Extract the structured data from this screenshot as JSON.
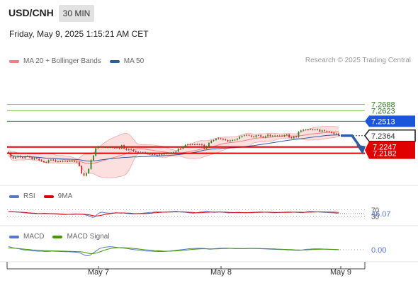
{
  "header": {
    "symbol": "USD/CNH",
    "interval": "30 MIN",
    "datetime": "Friday, May 9, 2025 1:15:21 AM CET"
  },
  "legend_main": [
    {
      "label": "MA 20 + Bollinger Bands",
      "color": "#f08080"
    },
    {
      "label": "MA 50",
      "color": "#2e5d9e"
    }
  ],
  "legend_rsi": [
    {
      "label": "RSI",
      "color": "#5577cc"
    },
    {
      "label": "9MA",
      "color": "#dd0000"
    }
  ],
  "legend_macd": [
    {
      "label": "MACD",
      "color": "#5577cc"
    },
    {
      "label": "MACD Signal",
      "color": "#449900"
    }
  ],
  "credit": "Research © 2025 Trading Central",
  "colors": {
    "up": "#2e7d1e",
    "down": "#c62828",
    "resistance": "#8bc34a",
    "pivot": "#1a56db",
    "support": "#e00000",
    "arrow": "#2e5d9e"
  },
  "chart_data": [
    {
      "type": "candlestick",
      "ylim": [
        7.185,
        7.305
      ],
      "x_ticks": [
        "May 7",
        "May 8",
        "May 9"
      ],
      "levels": [
        {
          "value": 7.2688,
          "label": "7.2688",
          "role": "resistance"
        },
        {
          "value": 7.2623,
          "label": "7.2623",
          "role": "resistance"
        },
        {
          "value": 7.2513,
          "label": "7.2513",
          "role": "pivot"
        },
        {
          "value": 7.2364,
          "label": "7.2364",
          "role": "last"
        },
        {
          "value": 7.2247,
          "label": "7.2247",
          "role": "support"
        },
        {
          "value": 7.2182,
          "label": "7.2182",
          "role": "support"
        }
      ],
      "close": [
        7.2185,
        7.2145,
        7.213,
        7.214,
        7.215,
        7.2142,
        7.2132,
        7.2148,
        7.215,
        7.214,
        7.212,
        7.2132,
        7.2125,
        7.211,
        7.21,
        7.209,
        7.2088,
        7.2108,
        7.2115,
        7.211,
        7.2096,
        7.21,
        7.2098,
        7.2102,
        7.21,
        7.2098,
        7.21,
        7.2103,
        7.2095,
        7.209,
        7.205,
        7.1975,
        7.195,
        7.1975,
        7.202,
        7.211,
        7.2158,
        7.2235,
        7.225,
        7.225,
        7.2245,
        7.2245,
        7.2242,
        7.2246,
        7.224,
        7.2238,
        7.224,
        7.223,
        7.2265,
        7.223,
        7.2215,
        7.2225,
        7.2218,
        7.2205,
        7.2196,
        7.2188,
        7.219,
        7.2192,
        7.2178,
        7.2182,
        7.217,
        7.2174,
        7.2165,
        7.2162,
        7.2168,
        7.217,
        7.2178,
        7.218,
        7.218,
        7.2188,
        7.2192,
        7.22,
        7.223,
        7.2228,
        7.2248,
        7.227,
        7.2275,
        7.2272,
        7.2275,
        7.2274,
        7.2273,
        7.2275,
        7.2268,
        7.2232,
        7.2255,
        7.229,
        7.231,
        7.2318,
        7.2332,
        7.2336,
        7.233,
        7.2325,
        7.2318,
        7.2305,
        7.2315,
        7.2318,
        7.2322,
        7.2332,
        7.2352,
        7.2362,
        7.2368,
        7.2372,
        7.2365,
        7.2355,
        7.235,
        7.2368,
        7.2368,
        7.2354,
        7.2345,
        7.2358,
        7.2374,
        7.236,
        7.2363,
        7.2364,
        7.2362,
        7.2364,
        7.2358,
        7.237,
        7.2375,
        7.2348,
        7.234,
        7.2355,
        7.235,
        7.2404,
        7.2418,
        7.2424,
        7.2427,
        7.2427,
        7.243,
        7.2426,
        7.2427,
        7.2428,
        7.2406,
        7.2418,
        7.2412,
        7.2407,
        7.24,
        7.2395,
        7.238,
        7.2385,
        7.2364
      ],
      "annotation": "arrow from 7.2364 down toward 7.2182"
    },
    {
      "type": "line",
      "name": "RSI",
      "ylim": [
        0,
        100
      ],
      "levels": [
        {
          "value": 70,
          "label": "70"
        },
        {
          "value": 30,
          "label": "30"
        }
      ],
      "last_label": "46.07",
      "series": [
        {
          "name": "RSI",
          "values": [
            60,
            58,
            57,
            56,
            55,
            54,
            52,
            50,
            49,
            48,
            47,
            46,
            45,
            46,
            47,
            48,
            47,
            46,
            45,
            44,
            43,
            42,
            41,
            40,
            40,
            41,
            42,
            43,
            44,
            43,
            42,
            41,
            38,
            34,
            28,
            22,
            24,
            40,
            50,
            55,
            52,
            50,
            48,
            49,
            50,
            51,
            50,
            49,
            50,
            48,
            46,
            45,
            44,
            45,
            46,
            47,
            48,
            50,
            52,
            53,
            54,
            56,
            58,
            57,
            56,
            55,
            56,
            57,
            58,
            59,
            60,
            58,
            56,
            55,
            54,
            52,
            50,
            48,
            50,
            52,
            55,
            58,
            60,
            62,
            58,
            55,
            53,
            55,
            57,
            56,
            54,
            52,
            50,
            51,
            52,
            53,
            54,
            53,
            52,
            51,
            52,
            53,
            54,
            55,
            56,
            57,
            56,
            55,
            54,
            53,
            52,
            51,
            52,
            53,
            54,
            55,
            56,
            57,
            56,
            55,
            54,
            53,
            52,
            51,
            55,
            58,
            60,
            59,
            58,
            57,
            56,
            55,
            54,
            53,
            52,
            51,
            50,
            48,
            46
          ]
        },
        {
          "name": "9MA",
          "values": [
            60,
            59,
            58,
            57,
            56,
            55,
            54,
            53,
            51,
            50,
            49,
            48,
            47,
            46,
            46,
            46,
            46,
            46,
            46,
            45,
            45,
            44,
            43,
            42,
            41,
            41,
            41,
            41,
            42,
            42,
            42,
            42,
            41,
            39,
            37,
            34,
            31,
            31,
            33,
            36,
            39,
            42,
            45,
            47,
            49,
            50,
            50,
            50,
            50,
            49,
            49,
            48,
            47,
            46,
            46,
            46,
            46,
            46,
            47,
            48,
            49,
            51,
            52,
            53,
            54,
            55,
            55,
            56,
            56,
            57,
            57,
            57,
            57,
            57,
            56,
            55,
            54,
            53,
            52,
            51,
            51,
            52,
            53,
            54,
            55,
            56,
            56,
            56,
            56,
            56,
            56,
            55,
            54,
            53,
            52,
            52,
            52,
            52,
            52,
            52,
            52,
            52,
            52,
            53,
            53,
            54,
            54,
            55,
            55,
            55,
            54,
            54,
            53,
            53,
            53,
            53,
            53,
            54,
            54,
            55,
            55,
            55,
            55,
            54,
            54,
            55,
            55,
            56,
            56,
            57,
            57,
            57,
            57,
            56,
            56,
            55,
            55,
            54,
            53
          ]
        }
      ]
    },
    {
      "type": "line",
      "name": "MACD",
      "ylim": [
        -1.4,
        1.4
      ],
      "last_label": "0.00",
      "series": [
        {
          "name": "MACD",
          "values": [
            0.6,
            0.45,
            0.35,
            0.25,
            0.2,
            0.1,
            0.0,
            -0.05,
            -0.1,
            -0.15,
            -0.2,
            -0.2,
            -0.25,
            -0.25,
            -0.25,
            -0.3,
            -0.3,
            -0.28,
            -0.25,
            -0.25,
            -0.28,
            -0.3,
            -0.32,
            -0.33,
            -0.35,
            -0.36,
            -0.38,
            -0.4,
            -0.45,
            -0.5,
            -0.6,
            -0.8,
            -1.0,
            -1.1,
            -1.0,
            -0.7,
            -0.4,
            -0.1,
            0.2,
            0.35,
            0.45,
            0.5,
            0.55,
            0.55,
            0.5,
            0.45,
            0.4,
            0.35,
            0.3,
            0.25,
            0.2,
            0.12,
            0.05,
            0.0,
            -0.05,
            -0.1,
            -0.15,
            -0.2,
            -0.22,
            -0.24,
            -0.26,
            -0.28,
            -0.3,
            -0.32,
            -0.32,
            -0.3,
            -0.28,
            -0.25,
            -0.2,
            -0.15,
            -0.1,
            -0.05,
            0.0,
            0.05,
            0.1,
            0.15,
            0.2,
            0.22,
            0.24,
            0.25,
            0.25,
            0.25,
            0.22,
            0.15,
            0.1,
            0.12,
            0.18,
            0.22,
            0.25,
            0.27,
            0.28,
            0.28,
            0.27,
            0.25,
            0.22,
            0.2,
            0.2,
            0.2,
            0.2,
            0.22,
            0.24,
            0.25,
            0.25,
            0.24,
            0.22,
            0.2,
            0.18,
            0.16,
            0.14,
            0.12,
            0.1,
            0.08,
            0.06,
            0.05,
            0.04,
            0.02,
            0.0,
            -0.02,
            -0.05,
            -0.08,
            -0.1,
            -0.12,
            -0.1,
            -0.02,
            0.05,
            0.1,
            0.12,
            0.14,
            0.15,
            0.16,
            0.15,
            0.14,
            0.12,
            0.1,
            0.08,
            0.05,
            0.03,
            0.01,
            0.0
          ]
        },
        {
          "name": "MACD Signal",
          "values": [
            0.3,
            0.3,
            0.28,
            0.25,
            0.22,
            0.18,
            0.14,
            0.1,
            0.06,
            0.02,
            -0.02,
            -0.05,
            -0.08,
            -0.11,
            -0.13,
            -0.15,
            -0.17,
            -0.19,
            -0.2,
            -0.21,
            -0.22,
            -0.23,
            -0.24,
            -0.25,
            -0.26,
            -0.28,
            -0.29,
            -0.3,
            -0.32,
            -0.34,
            -0.36,
            -0.42,
            -0.5,
            -0.6,
            -0.68,
            -0.7,
            -0.65,
            -0.55,
            -0.4,
            -0.25,
            -0.1,
            0.05,
            0.15,
            0.25,
            0.32,
            0.36,
            0.38,
            0.38,
            0.37,
            0.35,
            0.32,
            0.28,
            0.24,
            0.2,
            0.15,
            0.1,
            0.05,
            0.0,
            -0.04,
            -0.08,
            -0.12,
            -0.15,
            -0.18,
            -0.21,
            -0.23,
            -0.25,
            -0.26,
            -0.26,
            -0.25,
            -0.23,
            -0.2,
            -0.17,
            -0.14,
            -0.1,
            -0.06,
            -0.02,
            0.02,
            0.06,
            0.1,
            0.13,
            0.16,
            0.18,
            0.19,
            0.18,
            0.17,
            0.16,
            0.16,
            0.17,
            0.18,
            0.2,
            0.22,
            0.23,
            0.24,
            0.24,
            0.24,
            0.23,
            0.22,
            0.22,
            0.21,
            0.21,
            0.22,
            0.22,
            0.23,
            0.23,
            0.22,
            0.22,
            0.21,
            0.2,
            0.19,
            0.18,
            0.16,
            0.15,
            0.13,
            0.11,
            0.1,
            0.08,
            0.06,
            0.04,
            0.02,
            0.0,
            -0.02,
            -0.04,
            -0.05,
            -0.05,
            -0.03,
            -0.01,
            0.01,
            0.03,
            0.05,
            0.07,
            0.08,
            0.09,
            0.09,
            0.09,
            0.08,
            0.07,
            0.06,
            0.05,
            0.04
          ]
        }
      ]
    }
  ]
}
